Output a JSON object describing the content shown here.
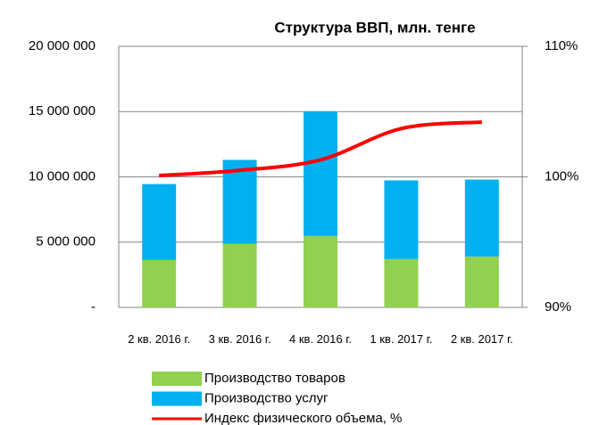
{
  "chart_data": {
    "type": "bar",
    "title": "Структура ВВП, млн. тенге",
    "categories": [
      "2 кв. 2016 г.",
      "3 кв. 2016 г.",
      "4 кв. 2016 г.",
      "1 кв. 2017 г.",
      "2 кв. 2017 г."
    ],
    "stacked": true,
    "series": [
      {
        "name": "Производство товаров",
        "color": "#92d050",
        "values": [
          3630000,
          4860000,
          5480000,
          3700000,
          3900000
        ]
      },
      {
        "name": "Производство услуг",
        "color": "#00b0f0",
        "values": [
          5820000,
          6440000,
          9520000,
          6030000,
          5890000
        ]
      },
      {
        "name": "Индекс физического объема, %",
        "color": "#ff0000",
        "type": "line",
        "axis": "y2",
        "values": [
          100.1,
          100.5,
          101.3,
          103.7,
          104.2
        ]
      }
    ],
    "ylim": [
      0,
      20000000
    ],
    "yticks": [
      {
        "value": 0,
        "label": "-"
      },
      {
        "value": 5000000,
        "label": "5 000 000"
      },
      {
        "value": 10000000,
        "label": "10 000 000"
      },
      {
        "value": 15000000,
        "label": "15 000 000"
      },
      {
        "value": 20000000,
        "label": "20 000 000"
      }
    ],
    "y2lim": [
      90,
      110
    ],
    "y2ticks": [
      {
        "value": 90,
        "label": "90%"
      },
      {
        "value": 100,
        "label": "100%"
      },
      {
        "value": 110,
        "label": "110%"
      }
    ],
    "grid": true,
    "legend": "bottom"
  }
}
